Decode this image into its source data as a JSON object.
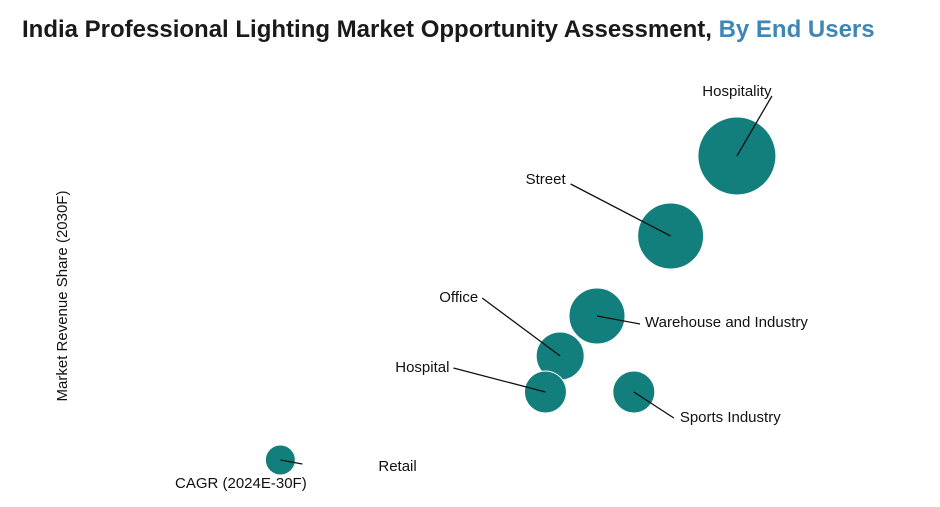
{
  "chart_data": {
    "type": "scatter",
    "title": "India Professional Lighting Market Opportunity Assessment,",
    "title_accent": "By End Users",
    "xlabel": "CAGR (2024E-30F)",
    "ylabel": "Market Revenue Share (2030F)",
    "points": [
      {
        "name": "Hospitality",
        "x": 9.6,
        "y": 8.6,
        "size": 39
      },
      {
        "name": "Street",
        "x": 8.7,
        "y": 6.6,
        "size": 33
      },
      {
        "name": "Warehouse and Industry",
        "x": 7.7,
        "y": 4.6,
        "size": 28
      },
      {
        "name": "Office",
        "x": 7.2,
        "y": 3.6,
        "size": 24
      },
      {
        "name": "Hospital",
        "x": 7.0,
        "y": 2.7,
        "size": 21
      },
      {
        "name": "Sports Industry",
        "x": 8.2,
        "y": 2.7,
        "size": 21
      },
      {
        "name": "Retail",
        "x": 3.4,
        "y": 1.0,
        "size": 15
      }
    ],
    "xlim": [
      0,
      11
    ],
    "ylim": [
      0,
      11
    ],
    "axes_visible": false,
    "grid": false,
    "legend": "none"
  },
  "colors": {
    "bubble": "#127f7c",
    "accent": "#3f86b5",
    "text": "#1a1a1a"
  }
}
